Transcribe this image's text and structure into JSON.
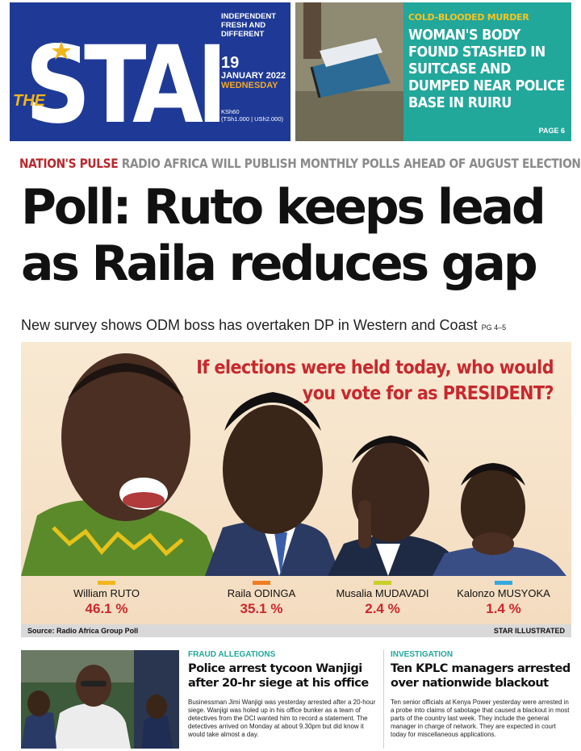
{
  "masthead": {
    "the": "THE",
    "logo": "STAR",
    "tagline": [
      "INDEPENDENT",
      "FRESH AND",
      "DIFFERENT"
    ],
    "day": "19",
    "month_year": "JANUARY 2022",
    "weekday": "WEDNESDAY",
    "price_line1": "KSh60",
    "price_line2": "(TSh1.000 | USh2.000)"
  },
  "teaser": {
    "kicker": "COLD-BLOODED MURDER",
    "headline": "WOMAN'S BODY FOUND STASHED IN SUITCASE AND DUMPED NEAR POLICE BASE IN RUIRU",
    "page": "PAGE 6"
  },
  "kicker_line": {
    "label": "NATION'S PULSE",
    "text": "RADIO AFRICA WILL PUBLISH MONTHLY POLLS AHEAD OF AUGUST ELECTION"
  },
  "headline": {
    "line1": "Poll: Ruto keeps lead",
    "line2": "as Raila reduces gap"
  },
  "subhead": {
    "text": "New survey shows ODM boss has overtaken DP in Western and Coast",
    "pages": "PG 4–5"
  },
  "poll": {
    "question_line1": "If elections were held today, who would",
    "question_line2": "you vote for as PRESIDENT?",
    "candidates": [
      {
        "first": "William",
        "last": "RUTO",
        "pct": "46.1 %",
        "color": "#f2b51c"
      },
      {
        "first": "Raila",
        "last": "ODINGA",
        "pct": "35.1 %",
        "color": "#f07d22"
      },
      {
        "first": "Musalia",
        "last": "MUDAVADI",
        "pct": "2.4 %",
        "color": "#c8cf2a"
      },
      {
        "first": "Kalonzo",
        "last": "MUSYOKA",
        "pct": "1.4 %",
        "color": "#35a8e0"
      }
    ],
    "source": "Source: Radio Africa Group Poll",
    "credit": "STAR ILLUSTRATED"
  },
  "story1": {
    "kicker": "FRAUD ALLEGATIONS",
    "headline": "Police arrest tycoon Wanjigi after 20-hr siege at his office",
    "body": "Businessman Jimi Wanjigi was yesterday arrested after a 20-hour siege. Wanjigi was holed up in his office bunker as a team of detectives from the DCI wanted him to record a statement. The detectives arrived on Monday at about 9.30pm but did know it would take almost a day."
  },
  "story2": {
    "kicker": "INVESTIGATION",
    "headline": "Ten KPLC managers arrested over nationwide blackout",
    "body": "Ten senior officials at Kenya Power yesterday were arrested in a probe into claims of sabotage that caused a blackout in most parts of the country last week. They include the general manager in charge of network. They are expected in court today for miscellaneous applications."
  }
}
